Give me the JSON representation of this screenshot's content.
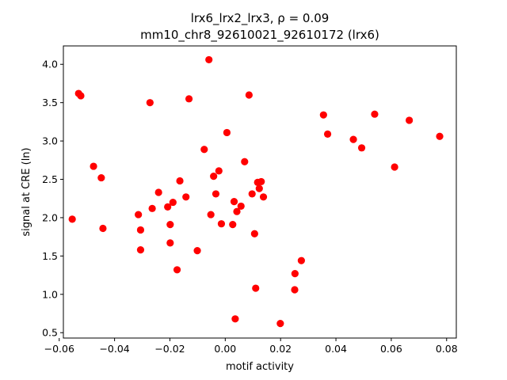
{
  "chart_data": {
    "type": "scatter",
    "title_line1": "lrx6_lrx2_lrx3, ρ = 0.09",
    "title_line2": "mm10_chr8_92610021_92610172 (lrx6)",
    "xlabel": "motif activity",
    "ylabel": "signal at CRE (ln)",
    "xlim": [
      -0.0585,
      0.0835
    ],
    "ylim": [
      0.43,
      4.24
    ],
    "xticks": [
      -0.06,
      -0.04,
      -0.02,
      0.0,
      0.02,
      0.04,
      0.06,
      0.08
    ],
    "xtick_labels": [
      "−0.06",
      "−0.04",
      "−0.02",
      "0.00",
      "0.02",
      "0.04",
      "0.06",
      "0.08"
    ],
    "yticks": [
      0.5,
      1.0,
      1.5,
      2.0,
      2.5,
      3.0,
      3.5,
      4.0
    ],
    "ytick_labels": [
      "0.5",
      "1.0",
      "1.5",
      "2.0",
      "2.5",
      "3.0",
      "3.5",
      "4.0"
    ],
    "marker_color": "#ff0000",
    "grid": false,
    "points": [
      {
        "x": -0.0553,
        "y": 1.98
      },
      {
        "x": -0.053,
        "y": 3.62
      },
      {
        "x": -0.0522,
        "y": 3.59
      },
      {
        "x": -0.0476,
        "y": 2.67
      },
      {
        "x": -0.0448,
        "y": 2.52
      },
      {
        "x": -0.0442,
        "y": 1.86
      },
      {
        "x": -0.0314,
        "y": 2.04
      },
      {
        "x": -0.0306,
        "y": 1.84
      },
      {
        "x": -0.0306,
        "y": 1.58
      },
      {
        "x": -0.0272,
        "y": 3.5
      },
      {
        "x": -0.0264,
        "y": 2.12
      },
      {
        "x": -0.0241,
        "y": 2.33
      },
      {
        "x": -0.0208,
        "y": 2.14
      },
      {
        "x": -0.0199,
        "y": 1.91
      },
      {
        "x": -0.0199,
        "y": 1.67
      },
      {
        "x": -0.0189,
        "y": 2.2
      },
      {
        "x": -0.0174,
        "y": 1.32
      },
      {
        "x": -0.0164,
        "y": 2.48
      },
      {
        "x": -0.0142,
        "y": 2.27
      },
      {
        "x": -0.0131,
        "y": 3.55
      },
      {
        "x": -0.0101,
        "y": 1.57
      },
      {
        "x": -0.0076,
        "y": 2.89
      },
      {
        "x": -0.0059,
        "y": 4.06
      },
      {
        "x": -0.0052,
        "y": 2.04
      },
      {
        "x": -0.0042,
        "y": 2.54
      },
      {
        "x": -0.0034,
        "y": 2.31
      },
      {
        "x": -0.0023,
        "y": 2.61
      },
      {
        "x": -0.0014,
        "y": 1.92
      },
      {
        "x": 0.0006,
        "y": 3.11
      },
      {
        "x": 0.0027,
        "y": 1.91
      },
      {
        "x": 0.0032,
        "y": 2.21
      },
      {
        "x": 0.0036,
        "y": 0.68
      },
      {
        "x": 0.0042,
        "y": 2.08
      },
      {
        "x": 0.0057,
        "y": 2.15
      },
      {
        "x": 0.007,
        "y": 2.73
      },
      {
        "x": 0.0086,
        "y": 3.6
      },
      {
        "x": 0.0097,
        "y": 2.31
      },
      {
        "x": 0.0106,
        "y": 1.79
      },
      {
        "x": 0.011,
        "y": 1.08
      },
      {
        "x": 0.0117,
        "y": 2.46
      },
      {
        "x": 0.0123,
        "y": 2.38
      },
      {
        "x": 0.013,
        "y": 2.47
      },
      {
        "x": 0.0138,
        "y": 2.27
      },
      {
        "x": 0.0199,
        "y": 0.62
      },
      {
        "x": 0.0251,
        "y": 1.06
      },
      {
        "x": 0.0252,
        "y": 1.27
      },
      {
        "x": 0.0275,
        "y": 1.44
      },
      {
        "x": 0.0355,
        "y": 3.34
      },
      {
        "x": 0.037,
        "y": 3.09
      },
      {
        "x": 0.0463,
        "y": 3.02
      },
      {
        "x": 0.0493,
        "y": 2.91
      },
      {
        "x": 0.054,
        "y": 3.35
      },
      {
        "x": 0.0612,
        "y": 2.66
      },
      {
        "x": 0.0665,
        "y": 3.27
      },
      {
        "x": 0.0775,
        "y": 3.06
      }
    ]
  }
}
